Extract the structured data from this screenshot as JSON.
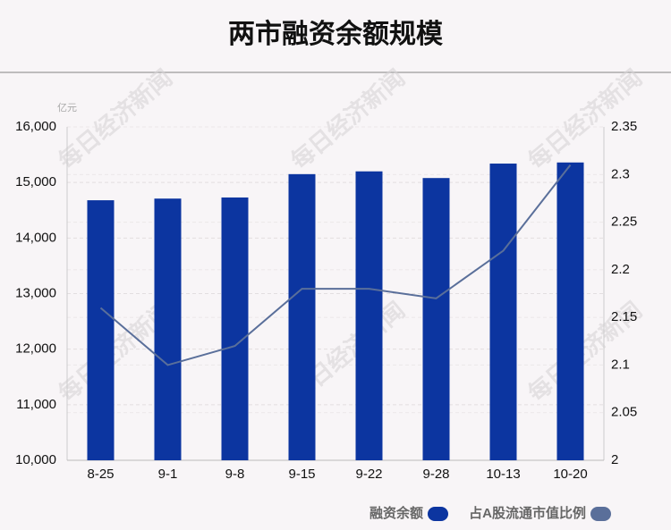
{
  "chart_data": {
    "type": "bar_line",
    "title": "两市融资余额规模",
    "y_unit": "亿元",
    "watermark": "每日经济新闻",
    "categories": [
      "8-25",
      "9-1",
      "9-8",
      "9-15",
      "9-22",
      "9-28",
      "10-13",
      "10-20"
    ],
    "series": [
      {
        "name": "融资余额",
        "type": "bar",
        "color": "#0c35a0",
        "values": [
          14680,
          14710,
          14730,
          15150,
          15200,
          15080,
          15340,
          15360
        ]
      },
      {
        "name": "占A股流通市值比例",
        "type": "line",
        "axis": "y2",
        "color": "#5a6f9a",
        "values": [
          2.16,
          2.1,
          2.12,
          2.18,
          2.18,
          2.17,
          2.22,
          2.31
        ]
      }
    ],
    "ylim": [
      10000,
      16000
    ],
    "yticks": [
      {
        "value": 10000,
        "label": "10,000"
      },
      {
        "value": 11000,
        "label": "11,000"
      },
      {
        "value": 12000,
        "label": "12,000"
      },
      {
        "value": 13000,
        "label": "13,000"
      },
      {
        "value": 14000,
        "label": "14,000"
      },
      {
        "value": 15000,
        "label": "15,000"
      },
      {
        "value": 16000,
        "label": "16,000"
      }
    ],
    "y2lim": [
      2,
      2.35
    ],
    "y2ticks": [
      2,
      2.05,
      2.1,
      2.15,
      2.2,
      2.25,
      2.3,
      2.35
    ],
    "grid": true
  }
}
